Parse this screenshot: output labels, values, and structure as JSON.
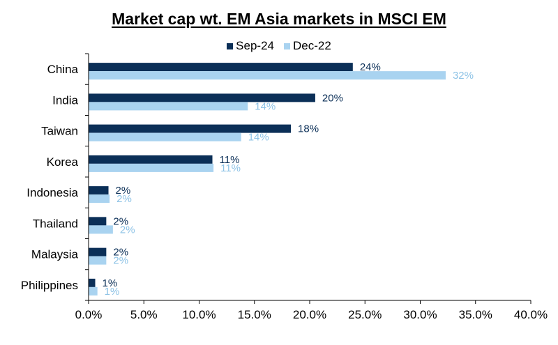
{
  "chart_data": {
    "type": "bar",
    "orientation": "horizontal",
    "title": "Market cap wt. EM Asia markets in MSCI EM",
    "categories": [
      "China",
      "India",
      "Taiwan",
      "Korea",
      "Indonesia",
      "Thailand",
      "Malaysia",
      "Philippines"
    ],
    "series": [
      {
        "name": "Sep-24",
        "color": "#0b2f57",
        "label_color": "#0b2f57",
        "values": [
          24,
          20,
          18,
          11,
          2,
          2,
          2,
          1
        ],
        "precise_values": [
          23.9,
          20.5,
          18.3,
          11.2,
          1.8,
          1.6,
          1.6,
          0.6
        ],
        "labels": [
          "24%",
          "20%",
          "18%",
          "11%",
          "2%",
          "2%",
          "2%",
          "1%"
        ]
      },
      {
        "name": "Dec-22",
        "color": "#a9d3f0",
        "label_color": "#8ec3e6",
        "values": [
          32,
          14,
          14,
          11,
          2,
          2,
          2,
          1
        ],
        "precise_values": [
          32.3,
          14.4,
          13.8,
          11.3,
          1.9,
          2.2,
          1.6,
          0.8
        ],
        "labels": [
          "32%",
          "14%",
          "14%",
          "11%",
          "2%",
          "2%",
          "2%",
          "1%"
        ]
      }
    ],
    "xlim": [
      0,
      40
    ],
    "x_ticks": [
      "0.0%",
      "5.0%",
      "10.0%",
      "15.0%",
      "20.0%",
      "25.0%",
      "30.0%",
      "35.0%",
      "40.0%"
    ],
    "xlabel": "",
    "ylabel": "",
    "grid": false,
    "legend_position": "top-center"
  }
}
